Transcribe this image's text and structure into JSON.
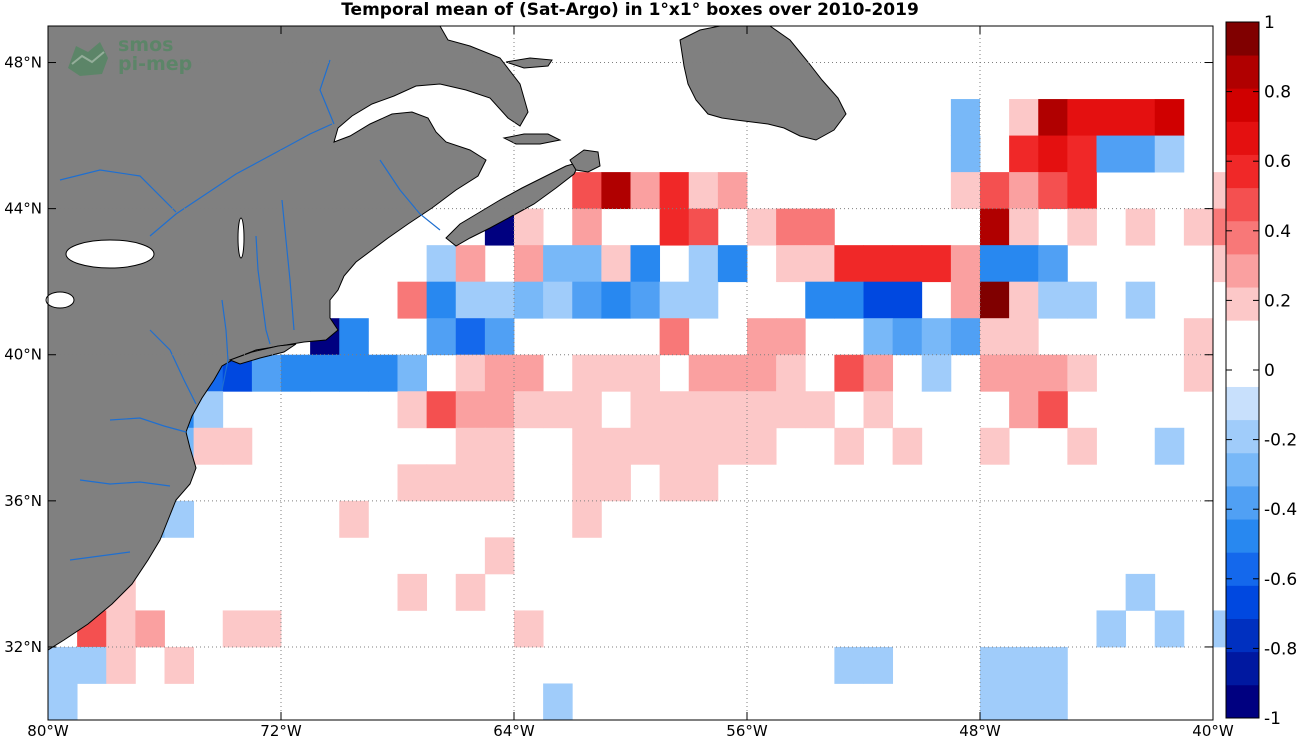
{
  "title": "Temporal mean of (Sat-Argo) in 1°x1° boxes over 2010-2019",
  "logo": {
    "line1": "smos",
    "line2": "pi-mep"
  },
  "axes": {
    "x_ticks": [
      "80°W",
      "72°W",
      "64°W",
      "56°W",
      "48°W",
      "40°W"
    ],
    "x_values": [
      -80,
      -72,
      -64,
      -56,
      -48,
      -40
    ],
    "y_ticks": [
      "32°N",
      "36°N",
      "40°N",
      "44°N",
      "48°N"
    ],
    "y_values": [
      32,
      36,
      40,
      44,
      48
    ]
  },
  "colorbar": {
    "tick_labels": [
      "1",
      "0.8",
      "0.6",
      "0.4",
      "0.2",
      "0",
      "-0.2",
      "-0.4",
      "-0.6",
      "-0.8",
      "-1"
    ],
    "tick_values": [
      1,
      0.8,
      0.6,
      0.4,
      0.2,
      0,
      -0.2,
      -0.4,
      -0.6,
      -0.8,
      -1
    ],
    "colors_bottom_to_top": [
      "#000080",
      "#0018a0",
      "#0030c0",
      "#0048e0",
      "#1468ec",
      "#2888f0",
      "#50a0f4",
      "#78b8f8",
      "#a0ccfa",
      "#c8e0fc",
      "#ffffff",
      "#ffffff",
      "#fcc8c8",
      "#faa0a0",
      "#f87878",
      "#f45050",
      "#f02828",
      "#e41010",
      "#d00000",
      "#b00000",
      "#800000"
    ]
  },
  "colors": {
    "land": "#808080",
    "coast": "#000000",
    "rivers": "#1f6fd0",
    "grid": "#7f7f7f"
  },
  "chart_data": {
    "type": "heatmap",
    "title": "Temporal mean of (Sat-Argo) in 1°x1° boxes over 2010-2019",
    "x_range": [
      -80,
      -40
    ],
    "y_range": [
      30,
      49
    ],
    "value_range": [
      -1,
      1
    ],
    "cell_size_deg": 1,
    "cells": [
      [
        -49,
        46,
        -0.25
      ],
      [
        -48,
        46,
        0.1
      ],
      [
        -47,
        46,
        0.2
      ],
      [
        -46,
        46,
        0.85
      ],
      [
        -45,
        46,
        0.7
      ],
      [
        -44,
        46,
        0.7
      ],
      [
        -43,
        46,
        0.7
      ],
      [
        -42,
        46,
        0.75
      ],
      [
        -49,
        45,
        -0.25
      ],
      [
        -47,
        45,
        0.6
      ],
      [
        -46,
        45,
        0.7
      ],
      [
        -45,
        45,
        0.6
      ],
      [
        -44,
        45,
        -0.35
      ],
      [
        -43,
        45,
        -0.35
      ],
      [
        -42,
        45,
        -0.15
      ],
      [
        -62,
        44,
        0.45
      ],
      [
        -61,
        44,
        0.85
      ],
      [
        -60,
        44,
        0.3
      ],
      [
        -59,
        44,
        0.6
      ],
      [
        -58,
        44,
        0.2
      ],
      [
        -57,
        44,
        0.3
      ],
      [
        -49,
        44,
        0.2
      ],
      [
        -48,
        44,
        0.45
      ],
      [
        -47,
        44,
        0.3
      ],
      [
        -46,
        44,
        0.45
      ],
      [
        -45,
        44,
        0.6
      ],
      [
        -40,
        44,
        0.2
      ],
      [
        -65,
        43,
        -0.95
      ],
      [
        -64,
        43,
        0.2
      ],
      [
        -62,
        43,
        0.3
      ],
      [
        -59,
        43,
        0.55
      ],
      [
        -58,
        43,
        0.45
      ],
      [
        -56,
        43,
        0.2
      ],
      [
        -55,
        43,
        0.35
      ],
      [
        -54,
        43,
        0.35
      ],
      [
        -48,
        43,
        0.85
      ],
      [
        -47,
        43,
        0.2
      ],
      [
        -45,
        43,
        0.2
      ],
      [
        -43,
        43,
        0.2
      ],
      [
        -41,
        43,
        0.2
      ],
      [
        -40,
        43,
        0.35
      ],
      [
        -67,
        42,
        -0.15
      ],
      [
        -66,
        42,
        0.3
      ],
      [
        -64,
        42,
        0.3
      ],
      [
        -63,
        42,
        -0.25
      ],
      [
        -62,
        42,
        -0.25
      ],
      [
        -61,
        42,
        0.2
      ],
      [
        -60,
        42,
        -0.45
      ],
      [
        -58,
        42,
        -0.15
      ],
      [
        -57,
        42,
        -0.45
      ],
      [
        -55,
        42,
        0.2
      ],
      [
        -54,
        42,
        0.2
      ],
      [
        -53,
        42,
        0.55
      ],
      [
        -52,
        42,
        0.55
      ],
      [
        -51,
        42,
        0.55
      ],
      [
        -50,
        42,
        0.6
      ],
      [
        -49,
        42,
        0.3
      ],
      [
        -48,
        42,
        -0.45
      ],
      [
        -47,
        42,
        -0.45
      ],
      [
        -46,
        42,
        -0.35
      ],
      [
        -40,
        42,
        0.2
      ],
      [
        -68,
        41,
        0.35
      ],
      [
        -67,
        41,
        -0.5
      ],
      [
        -66,
        41,
        -0.15
      ],
      [
        -65,
        41,
        -0.15
      ],
      [
        -64,
        41,
        -0.25
      ],
      [
        -63,
        41,
        -0.15
      ],
      [
        -62,
        41,
        -0.35
      ],
      [
        -61,
        41,
        -0.45
      ],
      [
        -60,
        41,
        -0.35
      ],
      [
        -59,
        41,
        -0.15
      ],
      [
        -58,
        41,
        -0.15
      ],
      [
        -54,
        41,
        -0.5
      ],
      [
        -53,
        41,
        -0.5
      ],
      [
        -52,
        41,
        -0.65
      ],
      [
        -51,
        41,
        -0.65
      ],
      [
        -49,
        41,
        0.3
      ],
      [
        -48,
        41,
        0.95
      ],
      [
        -47,
        41,
        0.2
      ],
      [
        -46,
        41,
        -0.15
      ],
      [
        -45,
        41,
        -0.15
      ],
      [
        -43,
        41,
        -0.15
      ],
      [
        -71,
        40,
        -0.95
      ],
      [
        -70,
        40,
        -0.5
      ],
      [
        -67,
        40,
        -0.35
      ],
      [
        -66,
        40,
        -0.55
      ],
      [
        -65,
        40,
        -0.35
      ],
      [
        -59,
        40,
        0.35
      ],
      [
        -56,
        40,
        0.3
      ],
      [
        -55,
        40,
        0.3
      ],
      [
        -52,
        40,
        -0.25
      ],
      [
        -51,
        40,
        -0.35
      ],
      [
        -50,
        40,
        -0.25
      ],
      [
        -49,
        40,
        -0.35
      ],
      [
        -48,
        40,
        0.2
      ],
      [
        -47,
        40,
        0.2
      ],
      [
        -41,
        40,
        0.2
      ],
      [
        -75,
        39,
        -0.55
      ],
      [
        -74,
        39,
        -0.65
      ],
      [
        -73,
        39,
        -0.35
      ],
      [
        -72,
        39,
        -0.45
      ],
      [
        -71,
        39,
        -0.45
      ],
      [
        -70,
        39,
        -0.45
      ],
      [
        -69,
        39,
        -0.45
      ],
      [
        -68,
        39,
        -0.25
      ],
      [
        -66,
        39,
        0.2
      ],
      [
        -65,
        39,
        0.3
      ],
      [
        -64,
        39,
        0.3
      ],
      [
        -62,
        39,
        0.2
      ],
      [
        -61,
        39,
        0.2
      ],
      [
        -60,
        39,
        0.2
      ],
      [
        -58,
        39,
        0.3
      ],
      [
        -57,
        39,
        0.3
      ],
      [
        -56,
        39,
        0.3
      ],
      [
        -55,
        39,
        0.2
      ],
      [
        -53,
        39,
        0.45
      ],
      [
        -52,
        39,
        0.3
      ],
      [
        -50,
        39,
        -0.15
      ],
      [
        -48,
        39,
        0.3
      ],
      [
        -47,
        39,
        0.3
      ],
      [
        -46,
        39,
        0.3
      ],
      [
        -45,
        39,
        0.2
      ],
      [
        -41,
        39,
        0.2
      ],
      [
        -76,
        38,
        -0.5
      ],
      [
        -75,
        38,
        -0.15
      ],
      [
        -68,
        38,
        0.2
      ],
      [
        -67,
        38,
        0.45
      ],
      [
        -66,
        38,
        0.3
      ],
      [
        -65,
        38,
        0.3
      ],
      [
        -64,
        38,
        0.2
      ],
      [
        -63,
        38,
        0.2
      ],
      [
        -62,
        38,
        0.2
      ],
      [
        -60,
        38,
        0.2
      ],
      [
        -59,
        38,
        0.2
      ],
      [
        -58,
        38,
        0.2
      ],
      [
        -57,
        38,
        0.2
      ],
      [
        -56,
        38,
        0.2
      ],
      [
        -55,
        38,
        0.2
      ],
      [
        -54,
        38,
        0.2
      ],
      [
        -52,
        38,
        0.2
      ],
      [
        -47,
        38,
        0.3
      ],
      [
        -46,
        38,
        0.45
      ],
      [
        -76,
        37,
        -0.25
      ],
      [
        -75,
        37,
        0.2
      ],
      [
        -74,
        37,
        0.2
      ],
      [
        -66,
        37,
        0.2
      ],
      [
        -65,
        37,
        0.2
      ],
      [
        -62,
        37,
        0.2
      ],
      [
        -61,
        37,
        0.2
      ],
      [
        -60,
        37,
        0.2
      ],
      [
        -59,
        37,
        0.2
      ],
      [
        -58,
        37,
        0.2
      ],
      [
        -57,
        37,
        0.2
      ],
      [
        -56,
        37,
        0.2
      ],
      [
        -53,
        37,
        0.2
      ],
      [
        -51,
        37,
        0.2
      ],
      [
        -48,
        37,
        0.2
      ],
      [
        -45,
        37,
        0.2
      ],
      [
        -42,
        37,
        -0.15
      ],
      [
        -68,
        36,
        0.2
      ],
      [
        -67,
        36,
        0.2
      ],
      [
        -66,
        36,
        0.2
      ],
      [
        -65,
        36,
        0.2
      ],
      [
        -62,
        36,
        0.2
      ],
      [
        -61,
        36,
        0.2
      ],
      [
        -59,
        36,
        0.2
      ],
      [
        -58,
        36,
        0.2
      ],
      [
        -77,
        35,
        -0.25
      ],
      [
        -76,
        35,
        -0.15
      ],
      [
        -70,
        35,
        0.2
      ],
      [
        -62,
        35,
        0.2
      ],
      [
        -65,
        34,
        0.2
      ],
      [
        -78,
        33,
        0.2
      ],
      [
        -68,
        33,
        0.2
      ],
      [
        -66,
        33,
        0.2
      ],
      [
        -43,
        33,
        -0.15
      ],
      [
        -79,
        32,
        0.45
      ],
      [
        -78,
        32,
        0.2
      ],
      [
        -77,
        32,
        0.3
      ],
      [
        -74,
        32,
        0.2
      ],
      [
        -73,
        32,
        0.2
      ],
      [
        -64,
        32,
        0.2
      ],
      [
        -44,
        32,
        -0.15
      ],
      [
        -42,
        32,
        -0.15
      ],
      [
        -40,
        32,
        -0.15
      ],
      [
        -80,
        31,
        -0.15
      ],
      [
        -79,
        31,
        -0.15
      ],
      [
        -78,
        31,
        0.2
      ],
      [
        -76,
        31,
        0.2
      ],
      [
        -53,
        31,
        -0.15
      ],
      [
        -52,
        31,
        -0.15
      ],
      [
        -48,
        31,
        -0.15
      ],
      [
        -47,
        31,
        -0.15
      ],
      [
        -46,
        31,
        -0.15
      ],
      [
        -80,
        30,
        -0.15
      ],
      [
        -63,
        30,
        -0.15
      ],
      [
        -48,
        30,
        -0.15
      ],
      [
        -47,
        30,
        -0.15
      ],
      [
        -46,
        30,
        -0.15
      ]
    ]
  }
}
